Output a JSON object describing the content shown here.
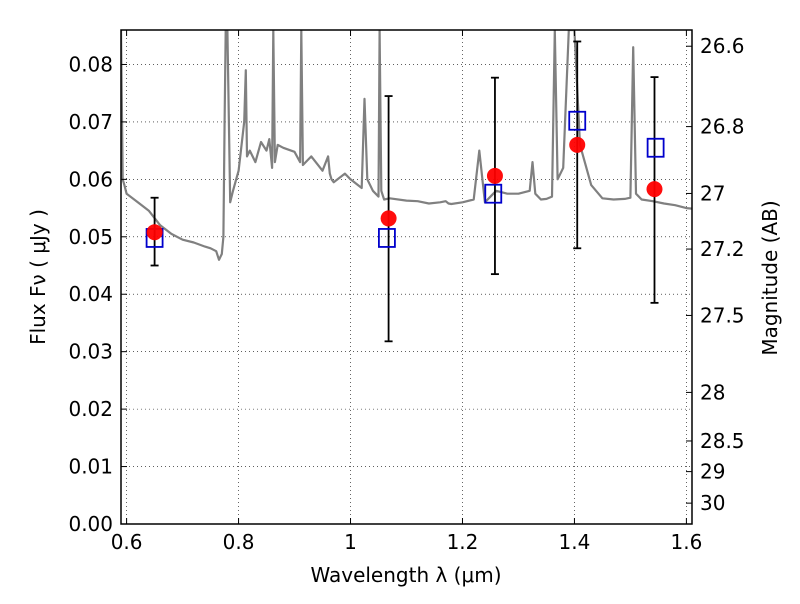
{
  "chart_data": {
    "type": "scatter",
    "xlabel": "Wavelength  λ (μm)",
    "ylabel": "Flux  Fν  ( μJy )",
    "ylabel_right": "Magnitude (AB)",
    "xlim": [
      0.59,
      1.61
    ],
    "ylim": [
      0.0,
      0.086
    ],
    "grid": true,
    "x_ticks": [
      0.6,
      0.8,
      1.0,
      1.2,
      1.4,
      1.6
    ],
    "x_tick_labels": [
      "0.6",
      "0.8",
      "1",
      "1.2",
      "1.4",
      "1.6"
    ],
    "y_ticks": [
      0.0,
      0.01,
      0.02,
      0.03,
      0.04,
      0.05,
      0.06,
      0.07,
      0.08
    ],
    "y_tick_labels": [
      "0.00",
      "0.01",
      "0.02",
      "0.03",
      "0.04",
      "0.05",
      "0.06",
      "0.07",
      "0.08"
    ],
    "right_ticks": [
      26.6,
      26.8,
      27.0,
      27.2,
      27.5,
      28.0,
      28.5,
      29.0,
      30.0
    ],
    "right_tick_labels": [
      "26.6",
      "26.8",
      "27",
      "27.2",
      "27.5",
      "28",
      "28.5",
      "29",
      "30"
    ],
    "series": [
      {
        "marker": "line",
        "color": "#808080",
        "x": [
          0.59,
          0.593,
          0.596,
          0.6,
          0.62,
          0.64,
          0.66,
          0.68,
          0.7,
          0.72,
          0.74,
          0.75,
          0.76,
          0.765,
          0.77,
          0.773,
          0.775,
          0.777,
          0.78,
          0.785,
          0.79,
          0.8,
          0.81,
          0.813,
          0.815,
          0.82,
          0.83,
          0.84,
          0.85,
          0.855,
          0.86,
          0.862,
          0.865,
          0.87,
          0.88,
          0.9,
          0.91,
          0.912,
          0.915,
          0.93,
          0.95,
          0.96,
          0.963,
          0.966,
          0.97,
          0.99,
          1.0,
          1.02,
          1.025,
          1.03,
          1.04,
          1.05,
          1.052,
          1.055,
          1.06,
          1.07,
          1.1,
          1.12,
          1.14,
          1.16,
          1.17,
          1.175,
          1.18,
          1.2,
          1.22,
          1.23,
          1.24,
          1.26,
          1.28,
          1.3,
          1.32,
          1.325,
          1.33,
          1.34,
          1.35,
          1.36,
          1.365,
          1.37,
          1.38,
          1.39,
          1.4,
          1.41,
          1.43,
          1.45,
          1.47,
          1.49,
          1.5,
          1.505,
          1.51,
          1.52,
          1.54,
          1.56,
          1.58,
          1.6,
          1.61
        ],
        "y": [
          0.086,
          0.06,
          0.059,
          0.0575,
          0.056,
          0.0545,
          0.052,
          0.0505,
          0.0495,
          0.049,
          0.0483,
          0.048,
          0.0475,
          0.046,
          0.047,
          0.05,
          0.07,
          0.086,
          0.086,
          0.056,
          0.058,
          0.0615,
          0.07,
          0.079,
          0.064,
          0.065,
          0.063,
          0.0665,
          0.065,
          0.067,
          0.062,
          0.086,
          0.063,
          0.066,
          0.0655,
          0.0648,
          0.063,
          0.086,
          0.0625,
          0.064,
          0.0615,
          0.064,
          0.061,
          0.06,
          0.0595,
          0.061,
          0.06,
          0.0585,
          0.074,
          0.06,
          0.058,
          0.057,
          0.086,
          0.058,
          0.0565,
          0.0567,
          0.0563,
          0.0562,
          0.0558,
          0.056,
          0.0562,
          0.0558,
          0.0557,
          0.056,
          0.0565,
          0.065,
          0.056,
          0.058,
          0.0575,
          0.0575,
          0.058,
          0.063,
          0.0575,
          0.0565,
          0.0566,
          0.057,
          0.086,
          0.06,
          0.062,
          0.086,
          0.086,
          0.066,
          0.059,
          0.0567,
          0.0565,
          0.0566,
          0.0568,
          0.083,
          0.0575,
          0.0565,
          0.0562,
          0.0558,
          0.0555,
          0.055,
          0.0549
        ]
      },
      {
        "marker": "circle",
        "color": "#ff0000",
        "x": [
          0.65,
          1.068,
          1.258,
          1.405,
          1.543
        ],
        "y": [
          0.0508,
          0.0532,
          0.0606,
          0.066,
          0.0583
        ],
        "yerr_low": [
          0.045,
          0.0318,
          0.0435,
          0.048,
          0.0385
        ],
        "yerr_high": [
          0.0568,
          0.0745,
          0.0777,
          0.084,
          0.0778
        ]
      },
      {
        "marker": "square",
        "color": "#0000cc",
        "x": [
          0.65,
          1.065,
          1.255,
          1.405,
          1.545
        ],
        "y": [
          0.0498,
          0.0498,
          0.0575,
          0.0702,
          0.0655
        ]
      }
    ]
  }
}
